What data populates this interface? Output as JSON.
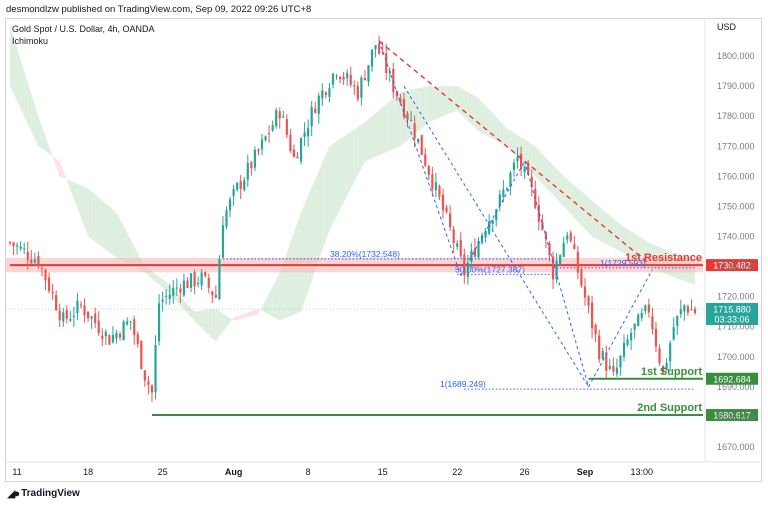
{
  "header": {
    "published_by": "desmondlzw published on TradingView.com, Sep 09, 2022 09:26 UTC+8",
    "symbol": "Gold Spot / U.S. Dollar, 4h, OANDA",
    "indicator": "Ichimoku"
  },
  "footer": {
    "brand": "TradingView"
  },
  "colors": {
    "up": "#26a69a",
    "down": "#ef5350",
    "resistance": "#e53935",
    "support": "#388e3c",
    "fib": "#2962ff",
    "cloud_bear": "#fddcdc",
    "cloud_bull": "#d9ecd9"
  },
  "chart_data": {
    "type": "candlestick",
    "currency": "USD",
    "y_range": [
      1665,
      1812
    ],
    "y_ticks": [
      1670,
      1680,
      1690,
      1700,
      1710,
      1720,
      1730,
      1740,
      1750,
      1760,
      1770,
      1780,
      1790,
      1800,
      1810
    ],
    "x_ticks": [
      {
        "label": "11",
        "i": 2
      },
      {
        "label": "18",
        "i": 22
      },
      {
        "label": "25",
        "i": 43
      },
      {
        "label": "Aug",
        "i": 63
      },
      {
        "label": "8",
        "i": 84
      },
      {
        "label": "15",
        "i": 105
      },
      {
        "label": "22",
        "i": 126
      },
      {
        "label": "26",
        "i": 145
      },
      {
        "label": "Sep",
        "i": 162
      },
      {
        "label": "13:00",
        "i": 178
      }
    ],
    "bar_count": 194,
    "closes_anchor": [
      [
        0,
        1738
      ],
      [
        8,
        1732
      ],
      [
        15,
        1712
      ],
      [
        20,
        1717
      ],
      [
        28,
        1706
      ],
      [
        34,
        1712
      ],
      [
        38,
        1694
      ],
      [
        40,
        1688
      ],
      [
        42,
        1718
      ],
      [
        48,
        1724
      ],
      [
        54,
        1726
      ],
      [
        58,
        1720
      ],
      [
        60,
        1746
      ],
      [
        64,
        1756
      ],
      [
        70,
        1768
      ],
      [
        76,
        1782
      ],
      [
        80,
        1766
      ],
      [
        86,
        1784
      ],
      [
        92,
        1796
      ],
      [
        98,
        1788
      ],
      [
        103,
        1804
      ],
      [
        108,
        1790
      ],
      [
        113,
        1778
      ],
      [
        118,
        1762
      ],
      [
        124,
        1742
      ],
      [
        128,
        1728
      ],
      [
        134,
        1744
      ],
      [
        138,
        1752
      ],
      [
        143,
        1766
      ],
      [
        148,
        1752
      ],
      [
        153,
        1728
      ],
      [
        157,
        1742
      ],
      [
        161,
        1724
      ],
      [
        166,
        1702
      ],
      [
        170,
        1693
      ],
      [
        175,
        1708
      ],
      [
        180,
        1716
      ],
      [
        184,
        1694
      ],
      [
        187,
        1710
      ],
      [
        190,
        1717
      ],
      [
        193,
        1715
      ]
    ],
    "kumo_a": [
      [
        0,
        1810
      ],
      [
        8,
        1780
      ],
      [
        14,
        1760
      ],
      [
        22,
        1756
      ],
      [
        30,
        1748
      ],
      [
        38,
        1730
      ],
      [
        44,
        1725
      ],
      [
        52,
        1715
      ],
      [
        58,
        1716
      ],
      [
        63,
        1712
      ],
      [
        70,
        1714
      ],
      [
        76,
        1728
      ],
      [
        82,
        1748
      ],
      [
        90,
        1770
      ],
      [
        100,
        1778
      ],
      [
        110,
        1788
      ],
      [
        118,
        1790
      ],
      [
        126,
        1790
      ],
      [
        132,
        1786
      ],
      [
        140,
        1776
      ],
      [
        148,
        1770
      ],
      [
        156,
        1760
      ],
      [
        164,
        1752
      ],
      [
        172,
        1744
      ],
      [
        180,
        1738
      ],
      [
        188,
        1734
      ],
      [
        193,
        1732
      ]
    ],
    "kumo_b": [
      [
        0,
        1790
      ],
      [
        8,
        1770
      ],
      [
        14,
        1765
      ],
      [
        22,
        1740
      ],
      [
        30,
        1733
      ],
      [
        38,
        1728
      ],
      [
        44,
        1722
      ],
      [
        52,
        1712
      ],
      [
        58,
        1705
      ],
      [
        63,
        1713
      ],
      [
        70,
        1716
      ],
      [
        76,
        1712
      ],
      [
        82,
        1715
      ],
      [
        90,
        1742
      ],
      [
        100,
        1765
      ],
      [
        110,
        1770
      ],
      [
        118,
        1778
      ],
      [
        126,
        1782
      ],
      [
        132,
        1775
      ],
      [
        140,
        1770
      ],
      [
        148,
        1760
      ],
      [
        156,
        1750
      ],
      [
        164,
        1740
      ],
      [
        172,
        1735
      ],
      [
        180,
        1730
      ],
      [
        188,
        1726
      ],
      [
        193,
        1724
      ]
    ],
    "levels": [
      {
        "name": "1st Resistance",
        "value": 1730.482,
        "label": "1730.482",
        "from_i": 0
      },
      {
        "name": "1st Support",
        "value": 1692.684,
        "label": "1692.684",
        "from_i": 163
      },
      {
        "name": "2nd Support",
        "value": 1680.617,
        "label": "1680.617",
        "from_i": 40
      }
    ],
    "current_price": {
      "value": 1715.88,
      "label": "1715.880",
      "countdown": "03:33:06"
    },
    "fib_labels": [
      {
        "text": "38.20%(1732.548)",
        "value": 1732.548
      },
      {
        "text": "50.00%(1727.387)",
        "value": 1727.387
      },
      {
        "text": "1(1729.593)",
        "value": 1729.593
      },
      {
        "text": "1(1689.249)",
        "value": 1689.249
      }
    ],
    "annotations": [
      "1st Resistance",
      "1st Support",
      "2nd Support"
    ]
  }
}
